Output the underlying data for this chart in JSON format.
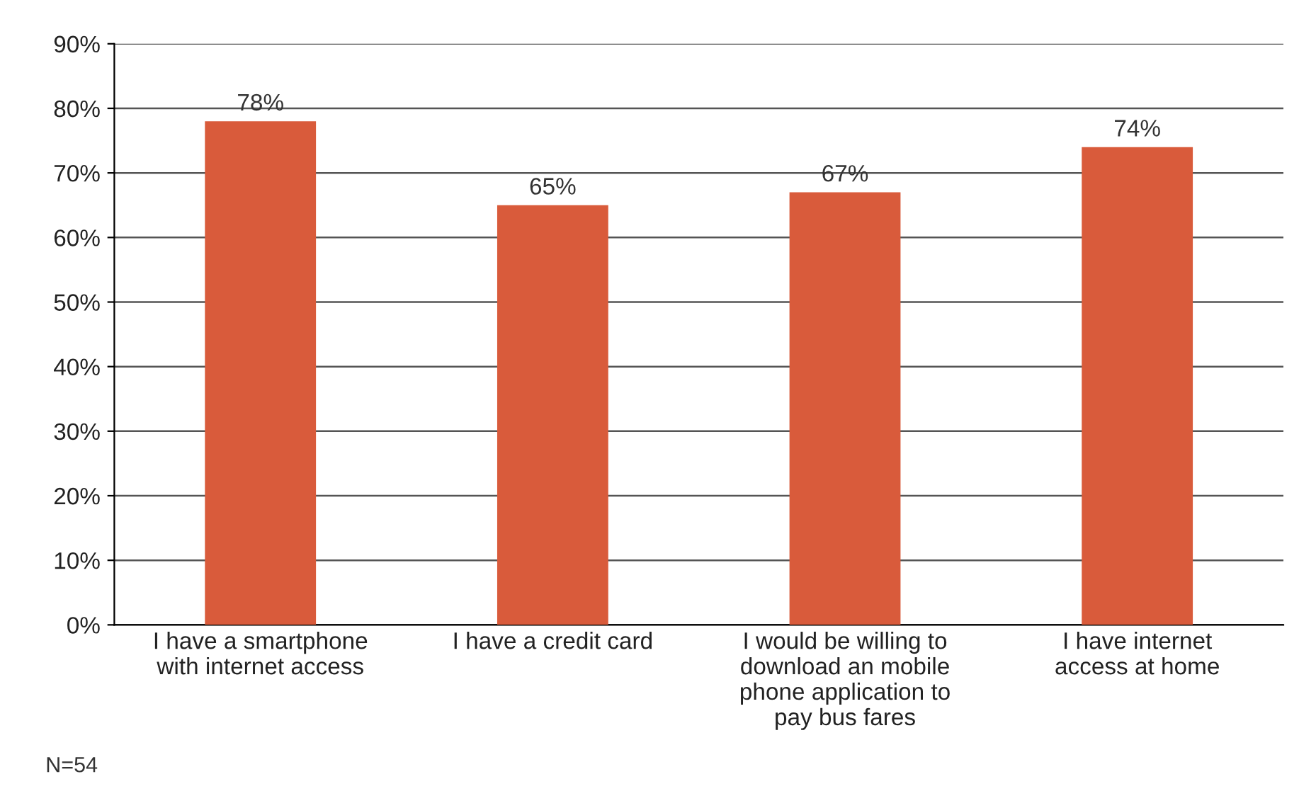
{
  "chart_data": {
    "type": "bar",
    "categories": [
      "I have a smartphone\nwith internet access",
      "I have a credit card",
      "I would be willing to\ndownload an mobile\nphone application to\npay bus fares",
      "I have internet\naccess at home"
    ],
    "values": [
      78,
      65,
      67,
      74
    ],
    "value_labels": [
      "78%",
      "65%",
      "67%",
      "74%"
    ],
    "color": "#d95b3b",
    "ylim": [
      0,
      90
    ],
    "yticks": [
      {
        "value": 0,
        "label": "0%"
      },
      {
        "value": 10,
        "label": "10%"
      },
      {
        "value": 20,
        "label": "20%"
      },
      {
        "value": 30,
        "label": "30%"
      },
      {
        "value": 40,
        "label": "40%"
      },
      {
        "value": 50,
        "label": "50%"
      },
      {
        "value": 60,
        "label": "60%"
      },
      {
        "value": 70,
        "label": "70%"
      },
      {
        "value": 80,
        "label": "80%"
      },
      {
        "value": 90,
        "label": "90%"
      }
    ],
    "grid": "y",
    "annotations": [
      "N=54"
    ]
  }
}
